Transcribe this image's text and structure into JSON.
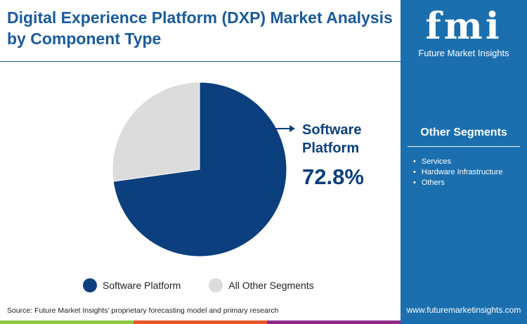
{
  "title": "Digital Experience Platform (DXP) Market Analysis by Component Type",
  "logo": {
    "text": "fmi",
    "subtitle": "Future Market Insights"
  },
  "sidebar": {
    "title": "Other Segments",
    "items": [
      "Services",
      "Hardware Infrastructure",
      "Others"
    ],
    "url": "www.futuremarketinsights.com"
  },
  "source": "Source: Future Market Insights’ proprietary forecasting model and primary research",
  "colors": {
    "primary": "#0b3f7d",
    "other": "#dcdcdc",
    "sidebar": "#1b6fae",
    "bar_green": "#8dc63f",
    "bar_orange": "#e8572a",
    "bar_purple": "#8e2c8a"
  },
  "chart_data": {
    "type": "pie",
    "categories": [
      "Software Platform",
      "All Other Segments"
    ],
    "values": [
      72.8,
      27.2
    ],
    "callout": {
      "label": "Software Platform",
      "value": "72.8%"
    },
    "legend": [
      "Software Platform",
      "All Other Segments"
    ],
    "legend_position": "bottom"
  }
}
